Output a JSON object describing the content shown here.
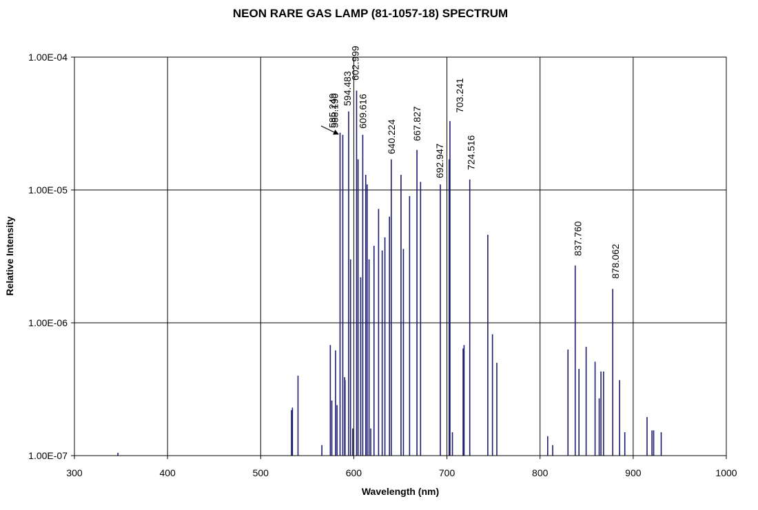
{
  "chart_data": {
    "type": "line",
    "title": "NEON RARE GAS LAMP (81-1057-18) SPECTRUM",
    "xlabel": "Wavelength (nm)",
    "ylabel": "Relative Intensity",
    "xlim": [
      300,
      1000
    ],
    "ylim": [
      1e-07,
      0.0001
    ],
    "y_scale": "log",
    "grid": true,
    "x_ticks": [
      "300",
      "400",
      "500",
      "600",
      "700",
      "800",
      "900",
      "1000"
    ],
    "y_ticks": [
      "1.00E-07",
      "1.00E-06",
      "1.00E-05",
      "1.00E-04"
    ],
    "line_color": "#1a1a6e",
    "lines": [
      [
        346.7,
        1.05e-07
      ],
      [
        533.1,
        2.2e-07
      ],
      [
        534.1,
        2.3e-07
      ],
      [
        540.1,
        4e-07
      ],
      [
        565.7,
        1.2e-07
      ],
      [
        574.8,
        6.8e-07
      ],
      [
        576.4,
        2.6e-07
      ],
      [
        580.4,
        6.2e-07
      ],
      [
        582.0,
        2.4e-07
      ],
      [
        585.249,
        2.7e-05
      ],
      [
        588.19,
        2.6e-05
      ],
      [
        590.2,
        3.9e-07
      ],
      [
        590.6,
        3.7e-07
      ],
      [
        594.483,
        3.9e-05
      ],
      [
        596.5,
        3e-06
      ],
      [
        598.8,
        1.6e-07
      ],
      [
        602.999,
        5.6e-05
      ],
      [
        604.6,
        1.7e-05
      ],
      [
        607.4,
        2.2e-06
      ],
      [
        609.616,
        2.6e-05
      ],
      [
        612.8,
        1.3e-05
      ],
      [
        614.3,
        1.1e-05
      ],
      [
        616.4,
        3e-06
      ],
      [
        618.2,
        1.6e-07
      ],
      [
        621.7,
        3.8e-06
      ],
      [
        626.6,
        7.2e-06
      ],
      [
        630.5,
        3.5e-06
      ],
      [
        633.4,
        4.4e-06
      ],
      [
        638.3,
        6.3e-06
      ],
      [
        640.224,
        1.7e-05
      ],
      [
        650.7,
        1.3e-05
      ],
      [
        653.3,
        3.6e-06
      ],
      [
        659.9,
        9e-06
      ],
      [
        667.827,
        2e-05
      ],
      [
        671.7,
        1.15e-05
      ],
      [
        692.947,
        1.1e-05
      ],
      [
        702.4,
        1.7e-05
      ],
      [
        703.241,
        3.3e-05
      ],
      [
        705.9,
        1.5e-07
      ],
      [
        717.4,
        6.4e-07
      ],
      [
        718.4,
        6.8e-07
      ],
      [
        724.516,
        1.2e-05
      ],
      [
        743.9,
        4.6e-06
      ],
      [
        748.9,
        8.2e-07
      ],
      [
        753.6,
        5e-07
      ],
      [
        808.2,
        1.4e-07
      ],
      [
        813.6,
        1.2e-07
      ],
      [
        830.0,
        6.3e-07
      ],
      [
        837.76,
        2.7e-06
      ],
      [
        841.8,
        4.5e-07
      ],
      [
        849.5,
        6.6e-07
      ],
      [
        859.1,
        5.1e-07
      ],
      [
        863.5,
        2.7e-07
      ],
      [
        865.4,
        4.3e-07
      ],
      [
        868.2,
        4.3e-07
      ],
      [
        878.062,
        1.8e-06
      ],
      [
        885.4,
        3.7e-07
      ],
      [
        891.0,
        1.5e-07
      ],
      [
        914.9,
        1.95e-07
      ],
      [
        920.2,
        1.55e-07
      ],
      [
        922.0,
        1.55e-07
      ],
      [
        930.1,
        1.5e-07
      ]
    ],
    "peak_labels": [
      {
        "text": "585.249",
        "x": 585.249
      },
      {
        "text": "588.190",
        "x": 588.19
      },
      {
        "text": "594.483",
        "x": 594.483
      },
      {
        "text": "602.999",
        "x": 602.999
      },
      {
        "text": "609.616",
        "x": 609.616
      },
      {
        "text": "640.224",
        "x": 640.224
      },
      {
        "text": "667.827",
        "x": 667.827
      },
      {
        "text": "692.947",
        "x": 692.947
      },
      {
        "text": "703.241",
        "x": 703.241
      },
      {
        "text": "724.516",
        "x": 724.516
      },
      {
        "text": "837.760",
        "x": 837.76
      },
      {
        "text": "878.062",
        "x": 878.062
      }
    ]
  }
}
